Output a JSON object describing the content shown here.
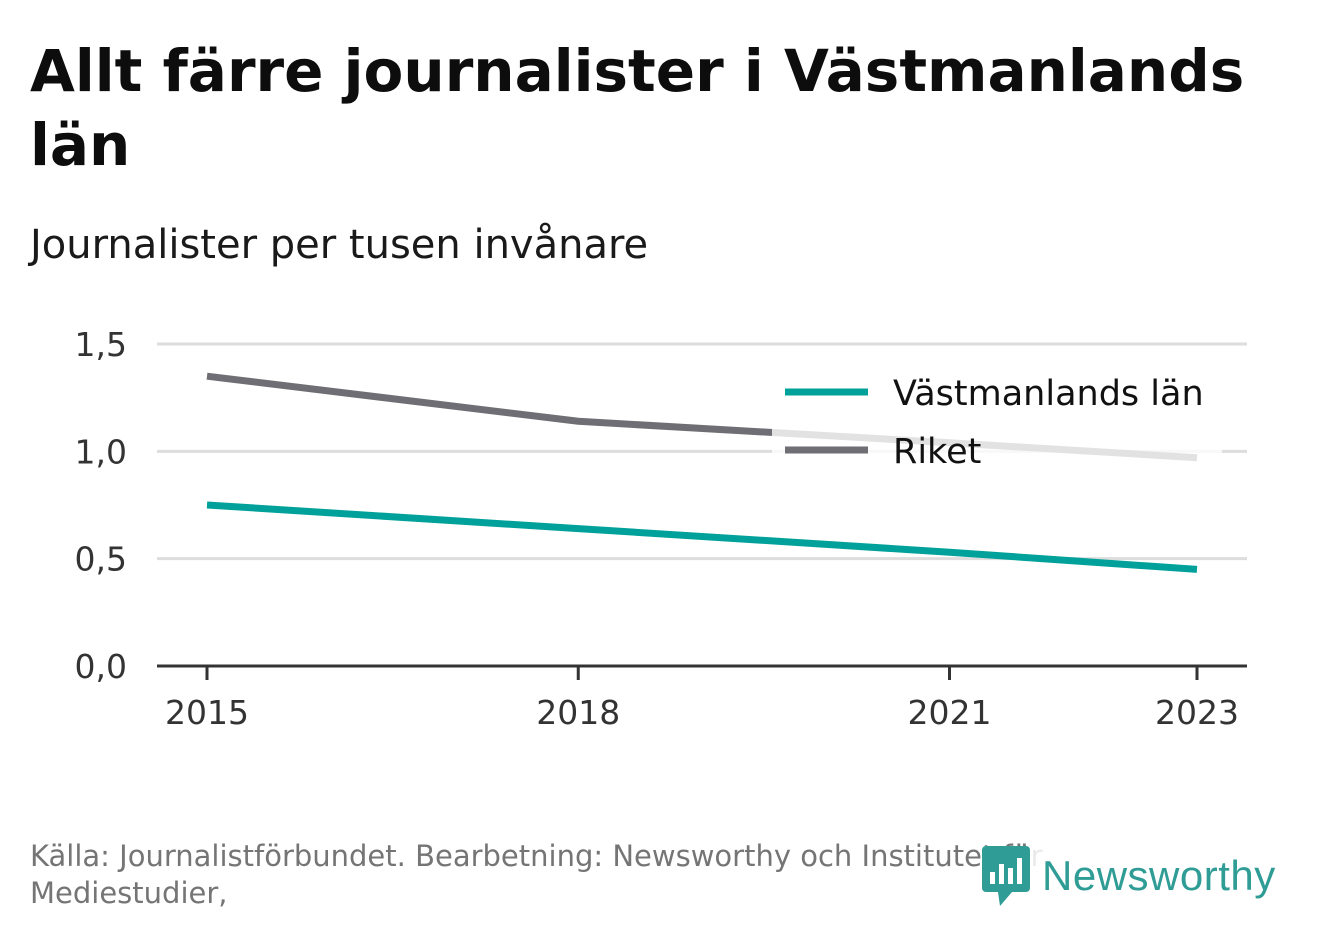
{
  "header": {
    "title": "Allt färre journalister i Västmanlands län",
    "subtitle": "Journalister per tusen invånare"
  },
  "footer": {
    "source": "Källa: Journalistförbundet. Bearbetning: Newsworthy och Institutet för Mediestudier,",
    "logo_text": "Newsworthy",
    "logo_color": "#2f9c95"
  },
  "chart_data": {
    "type": "line",
    "x": [
      2015,
      2018,
      2021,
      2023
    ],
    "x_ticks": [
      "2015",
      "2018",
      "2021",
      "2023"
    ],
    "y_ticks": [
      "0,0",
      "0,5",
      "1,0",
      "1,5"
    ],
    "ylim": [
      0,
      1.5
    ],
    "xlim": [
      2015,
      2023
    ],
    "grid": true,
    "legend_position": "top-right",
    "series": [
      {
        "name": "Västmanlands län",
        "values": [
          0.75,
          0.64,
          0.53,
          0.45
        ],
        "color": "#00a19a"
      },
      {
        "name": "Riket",
        "values": [
          1.35,
          1.14,
          1.04,
          0.97
        ],
        "color": "#6e6e74"
      }
    ]
  }
}
